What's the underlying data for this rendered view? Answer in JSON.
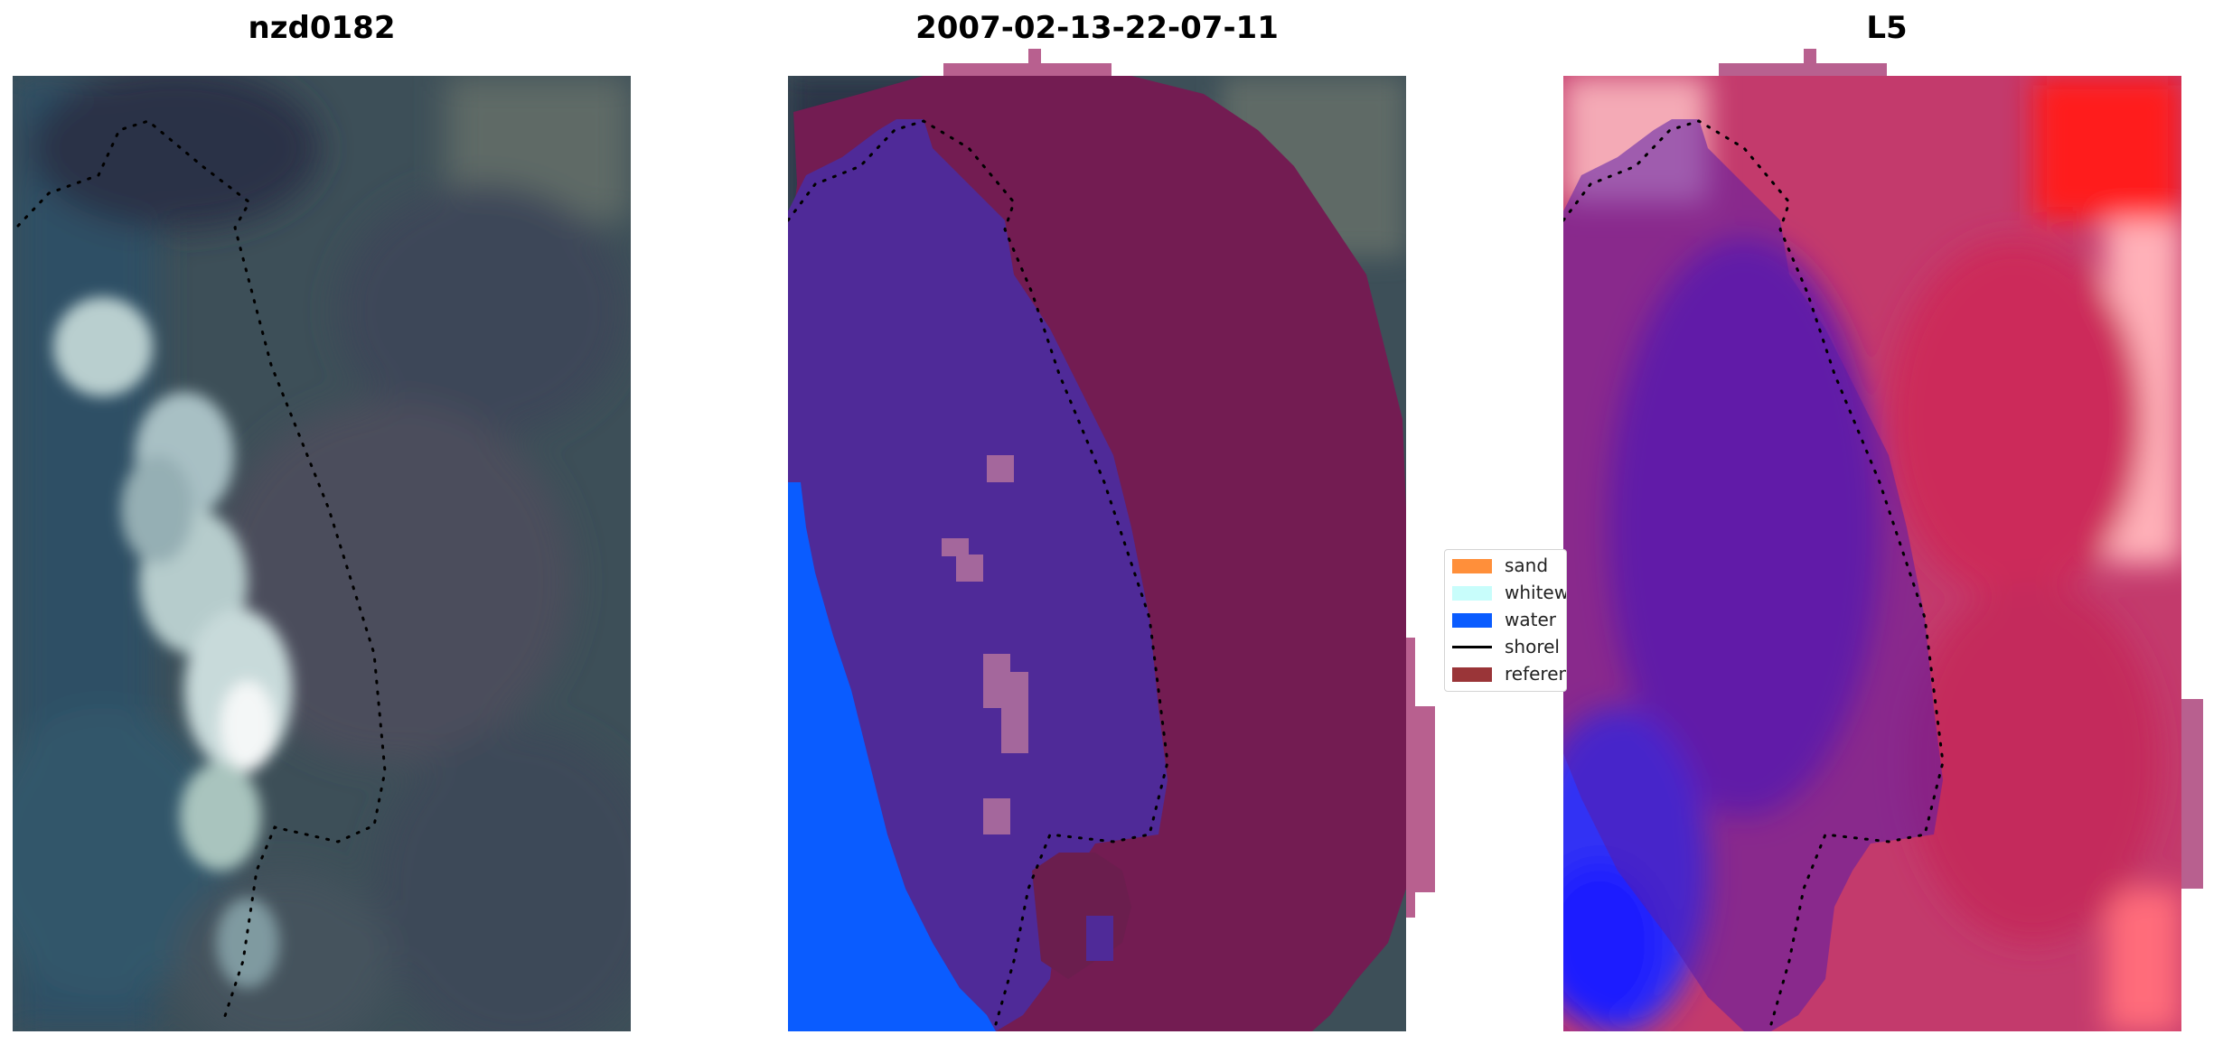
{
  "panels": [
    {
      "title": "nzd0182"
    },
    {
      "title": "2007-02-13-22-07-11"
    },
    {
      "title": "L5"
    }
  ],
  "legend": {
    "items": [
      {
        "label": "sand",
        "color": "#ff8f3a"
      },
      {
        "label": "whitew",
        "color": "#c8fdfb"
      },
      {
        "label": "water",
        "color": "#0a5cff"
      },
      {
        "label": "shorel",
        "color": "#000000"
      },
      {
        "label": "referen",
        "color": "#9a3538"
      }
    ]
  },
  "colors": {
    "sand_overlay": "#4f2a98",
    "water_overlay": "#0a5cff",
    "reference_overlay": "#731c52",
    "reference_outside": "#b8608f",
    "imagery_base": "#3b4d57"
  }
}
